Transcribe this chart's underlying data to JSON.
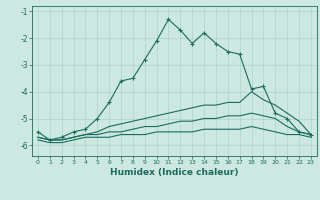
{
  "xlabel": "Humidex (Indice chaleur)",
  "background_color": "#cce8e0",
  "grid_color": "#aad4cc",
  "line_color": "#1a6b5e",
  "x": [
    0,
    1,
    2,
    3,
    4,
    5,
    6,
    7,
    8,
    9,
    10,
    11,
    12,
    13,
    14,
    15,
    16,
    17,
    18,
    19,
    20,
    21,
    22,
    23
  ],
  "line1": [
    -5.5,
    -5.8,
    -5.7,
    -5.5,
    -5.4,
    -5.0,
    -4.4,
    -3.6,
    -3.5,
    -2.8,
    -2.1,
    -1.3,
    -1.7,
    -2.2,
    -1.8,
    -2.2,
    -2.5,
    -2.6,
    -3.9,
    -3.8,
    -4.8,
    -5.0,
    -5.5,
    -5.6
  ],
  "line2": [
    -5.7,
    -5.8,
    -5.8,
    -5.7,
    -5.6,
    -5.5,
    -5.3,
    -5.2,
    -5.1,
    -5.0,
    -4.9,
    -4.8,
    -4.7,
    -4.6,
    -4.5,
    -4.5,
    -4.4,
    -4.4,
    -4.0,
    -4.3,
    -4.5,
    -4.8,
    -5.1,
    -5.6
  ],
  "line3": [
    -5.7,
    -5.8,
    -5.8,
    -5.7,
    -5.6,
    -5.6,
    -5.5,
    -5.5,
    -5.4,
    -5.3,
    -5.3,
    -5.2,
    -5.1,
    -5.1,
    -5.0,
    -5.0,
    -4.9,
    -4.9,
    -4.8,
    -4.9,
    -5.0,
    -5.3,
    -5.5,
    -5.6
  ],
  "line4": [
    -5.8,
    -5.9,
    -5.9,
    -5.8,
    -5.7,
    -5.7,
    -5.7,
    -5.6,
    -5.6,
    -5.6,
    -5.5,
    -5.5,
    -5.5,
    -5.5,
    -5.4,
    -5.4,
    -5.4,
    -5.4,
    -5.3,
    -5.4,
    -5.5,
    -5.6,
    -5.6,
    -5.7
  ],
  "xlim": [
    -0.5,
    23.5
  ],
  "ylim": [
    -6.4,
    -0.8
  ],
  "yticks": [
    -6,
    -5,
    -4,
    -3,
    -2,
    -1
  ],
  "xticks": [
    0,
    1,
    2,
    3,
    4,
    5,
    6,
    7,
    8,
    9,
    10,
    11,
    12,
    13,
    14,
    15,
    16,
    17,
    18,
    19,
    20,
    21,
    22,
    23
  ]
}
